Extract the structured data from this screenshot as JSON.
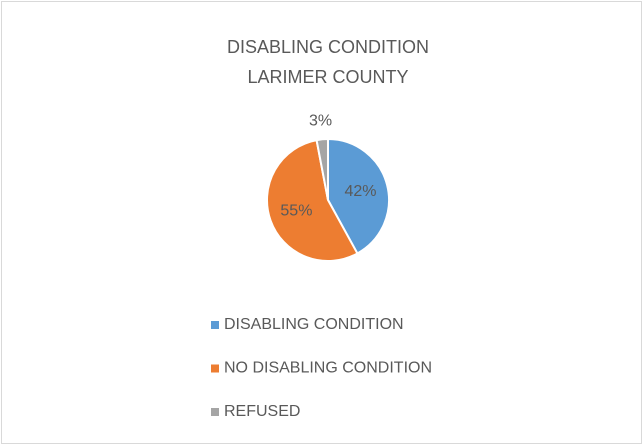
{
  "chart_data": {
    "type": "pie",
    "title": [
      "DISABLING CONDITION",
      "LARIMER COUNTY"
    ],
    "categories": [
      "DISABLING CONDITION",
      "NO DISABLING CONDITION",
      "REFUSED"
    ],
    "values": [
      42,
      55,
      3
    ],
    "value_labels": [
      "42%",
      "55%",
      "3%"
    ],
    "colors": [
      "#5b9bd5",
      "#ed7d31",
      "#a5a5a5"
    ],
    "legend": "bottom"
  }
}
